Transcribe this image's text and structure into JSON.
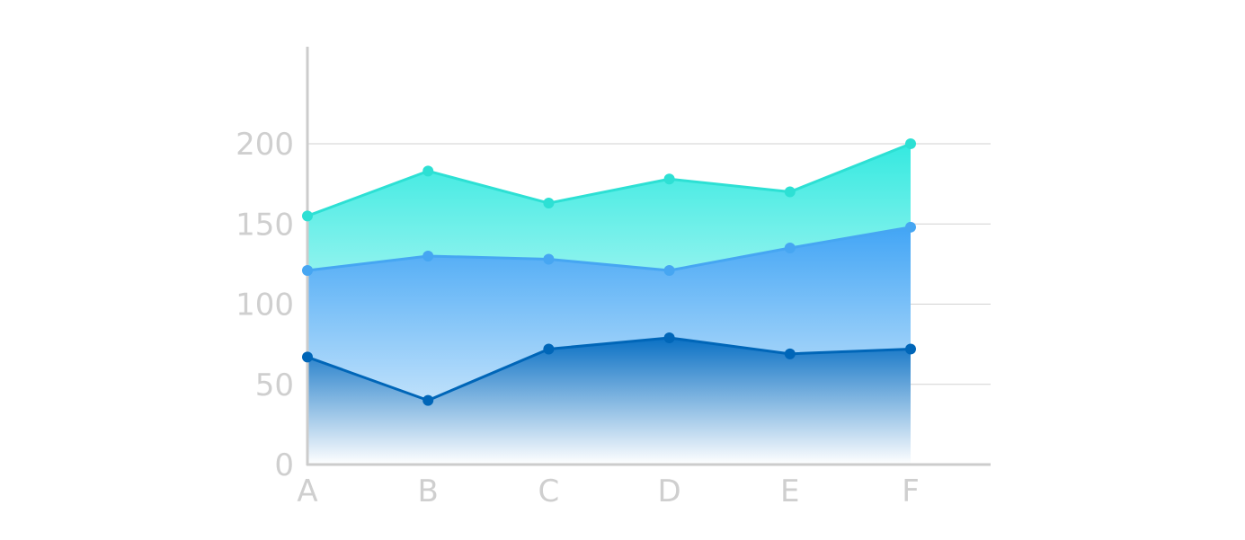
{
  "chart_data": {
    "type": "area",
    "stacked": true,
    "categories": [
      "A",
      "B",
      "C",
      "D",
      "E",
      "F"
    ],
    "ylim": [
      0,
      200
    ],
    "yticks": [
      "0",
      "50",
      "100",
      "150",
      "200"
    ],
    "grid": "horizontal",
    "legend": "none",
    "series": [
      {
        "values": [
          67,
          40,
          72,
          79,
          69,
          72
        ],
        "color": "#0066b8",
        "fill_top": "#0a70c4",
        "fill_bottom": "#ffffff"
      },
      {
        "values": [
          121,
          130,
          128,
          121,
          135,
          148
        ],
        "color": "#46a6f2",
        "fill_top": "#42a5f5",
        "fill_bottom": "#bfe1fb"
      },
      {
        "values": [
          155,
          183,
          163,
          178,
          170,
          200
        ],
        "color": "#2de0d4",
        "fill_top": "#35e9e0",
        "fill_bottom": "#8ef3ee"
      }
    ]
  }
}
